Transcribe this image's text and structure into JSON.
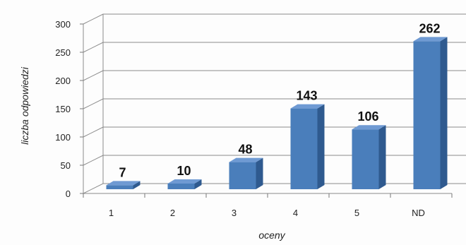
{
  "chart_data": {
    "type": "bar",
    "categories": [
      "1",
      "2",
      "3",
      "4",
      "5",
      "ND"
    ],
    "values": [
      7,
      10,
      48,
      143,
      106,
      262
    ],
    "data_labels": [
      "7",
      "10",
      "48",
      "143",
      "106",
      "262"
    ],
    "xlabel": "oceny",
    "ylabel": "liczba odpowiedzi",
    "ylim": [
      0,
      300
    ],
    "yticks": [
      0,
      50,
      100,
      150,
      200,
      250,
      300
    ],
    "grid": true,
    "three_d": true,
    "bar_color": "#4a7ebb",
    "bar_side_color": "#2f5a8f",
    "bar_top_color": "#6f9ad3"
  }
}
